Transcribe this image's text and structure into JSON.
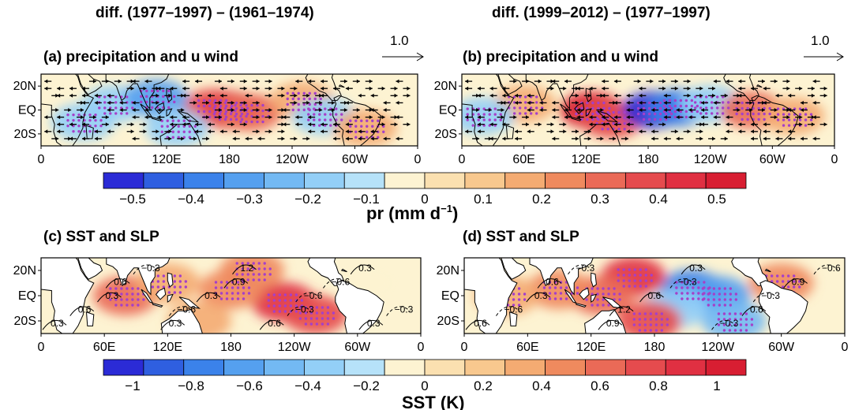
{
  "column_titles": [
    "diff. (1977–1997) – (1961–1974)",
    "diff. (1999–2012) – (1977–1997)"
  ],
  "reference_vector": {
    "label": "1.0"
  },
  "panels": [
    {
      "id": "a",
      "title": "(a) precipitation and u wind",
      "field": "pr"
    },
    {
      "id": "b",
      "title": "(b) precipitation and u wind",
      "field": "pr"
    },
    {
      "id": "c",
      "title": "(c) SST and SLP",
      "field": "sst"
    },
    {
      "id": "d",
      "title": "(d) SST and SLP",
      "field": "sst"
    }
  ],
  "axes": {
    "x_ticks": [
      "0",
      "60E",
      "120E",
      "180",
      "120W",
      "60W",
      "0"
    ],
    "y_ticks": [
      "20N",
      "EQ",
      "20S"
    ]
  },
  "colorbars": {
    "pr": {
      "ticks": [
        "−0.5",
        "−0.4",
        "−0.3",
        "−0.2",
        "−0.1",
        "0",
        "0.1",
        "0.2",
        "0.3",
        "0.4",
        "0.5"
      ],
      "label": "pr (mm d",
      "label_sup": "−1",
      "label_close": ")",
      "range": [
        -0.55,
        0.55
      ]
    },
    "sst": {
      "ticks": [
        "−1",
        "−0.8",
        "−0.6",
        "−0.4",
        "−0.2",
        "0",
        "0.2",
        "0.4",
        "0.6",
        "0.8",
        "1"
      ],
      "label": "SST (K)",
      "range": [
        -1.1,
        1.1
      ]
    },
    "colors": [
      "#2b2bd6",
      "#2f5fe0",
      "#3b82ea",
      "#55a0ef",
      "#73b9f3",
      "#93cff7",
      "#b6e2f9",
      "#fdf3d2",
      "#fbe0b0",
      "#f8c88e",
      "#f4ab72",
      "#ef8a5e",
      "#ea6a57",
      "#e54b4e",
      "#e03042",
      "#d81e32"
    ]
  },
  "contour_labels": {
    "c": [
      "0.3",
      "0.6",
      "0.3",
      "0.6",
      "−0.3",
      "0.3",
      "−0.6",
      "0.3",
      "0.9",
      "1.2",
      "0.6",
      "−0.3",
      "−0.6",
      "−0.6",
      "0.3",
      "0.3",
      "−0.3"
    ],
    "d": [
      "0.6",
      "−0.6",
      "0.3",
      "0.6",
      "−0.3",
      "0.9",
      "1.2",
      "0.6",
      "−0.3",
      "0.3",
      "−0.3",
      "0.6",
      "−0.3",
      "0.9",
      "−0.6"
    ]
  },
  "chart_data": [
    {
      "type": "heatmap",
      "panel": "a",
      "title": "(a) precipitation and u wind",
      "variable": "precipitation difference",
      "units": "mm d⁻¹",
      "x_range": [
        0,
        360
      ],
      "y_range": [
        -30,
        30
      ],
      "value_range": [
        -0.55,
        0.55
      ],
      "features": [
        {
          "lon": 180,
          "lat": 0,
          "value": 0.5
        },
        {
          "lon": 165,
          "lat": 2,
          "value": 0.4
        },
        {
          "lon": 200,
          "lat": -2,
          "value": 0.3
        },
        {
          "lon": 250,
          "lat": 8,
          "value": 0.2
        },
        {
          "lon": 70,
          "lat": 5,
          "value": -0.2
        },
        {
          "lon": 110,
          "lat": 10,
          "value": -0.3
        },
        {
          "lon": 270,
          "lat": -5,
          "value": -0.2
        },
        {
          "lon": 310,
          "lat": -15,
          "value": 0.2
        },
        {
          "lon": 130,
          "lat": -15,
          "value": -0.2
        },
        {
          "lon": 40,
          "lat": -10,
          "value": -0.2
        }
      ]
    },
    {
      "type": "heatmap",
      "panel": "b",
      "title": "(b) precipitation and u wind",
      "variable": "precipitation difference",
      "units": "mm d⁻¹",
      "x_range": [
        0,
        360
      ],
      "y_range": [
        -30,
        30
      ],
      "value_range": [
        -0.55,
        0.55
      ],
      "features": [
        {
          "lon": 125,
          "lat": 0,
          "value": 0.5
        },
        {
          "lon": 145,
          "lat": -8,
          "value": 0.4
        },
        {
          "lon": 185,
          "lat": 0,
          "value": -0.55
        },
        {
          "lon": 210,
          "lat": 2,
          "value": -0.4
        },
        {
          "lon": 240,
          "lat": 5,
          "value": -0.2
        },
        {
          "lon": 280,
          "lat": 0,
          "value": 0.3
        },
        {
          "lon": 60,
          "lat": 5,
          "value": 0.2
        },
        {
          "lon": 20,
          "lat": -5,
          "value": -0.2
        },
        {
          "lon": 320,
          "lat": -5,
          "value": 0.2
        }
      ]
    },
    {
      "type": "heatmap",
      "panel": "c",
      "title": "(c) SST and SLP",
      "variable": "SST difference",
      "units": "K",
      "x_range": [
        0,
        360
      ],
      "y_range": [
        -30,
        30
      ],
      "value_range": [
        -1.1,
        1.1
      ],
      "features": [
        {
          "lon": 230,
          "lat": -5,
          "value": 0.9
        },
        {
          "lon": 260,
          "lat": -15,
          "value": 0.8
        },
        {
          "lon": 180,
          "lat": 5,
          "value": 0.5
        },
        {
          "lon": 80,
          "lat": 0,
          "value": 0.6
        },
        {
          "lon": 120,
          "lat": 10,
          "value": 0.4
        },
        {
          "lon": 200,
          "lat": 20,
          "value": 0.5
        },
        {
          "lon": 150,
          "lat": -20,
          "value": 0.3
        },
        {
          "lon": 310,
          "lat": 10,
          "value": -0.1
        }
      ]
    },
    {
      "type": "heatmap",
      "panel": "d",
      "title": "(d) SST and SLP",
      "variable": "SST difference",
      "units": "K",
      "x_range": [
        0,
        360
      ],
      "y_range": [
        -30,
        30
      ],
      "value_range": [
        -1.1,
        1.1
      ],
      "features": [
        {
          "lon": 215,
          "lat": 5,
          "value": -0.7
        },
        {
          "lon": 240,
          "lat": 0,
          "value": -0.6
        },
        {
          "lon": 200,
          "lat": -10,
          "value": -0.3
        },
        {
          "lon": 160,
          "lat": 15,
          "value": 0.9
        },
        {
          "lon": 175,
          "lat": -20,
          "value": 0.8
        },
        {
          "lon": 130,
          "lat": 0,
          "value": 0.6
        },
        {
          "lon": 90,
          "lat": 5,
          "value": 0.5
        },
        {
          "lon": 40,
          "lat": 0,
          "value": 0.4
        },
        {
          "lon": 300,
          "lat": 10,
          "value": 0.5
        },
        {
          "lon": 255,
          "lat": -20,
          "value": -0.5
        }
      ]
    }
  ]
}
